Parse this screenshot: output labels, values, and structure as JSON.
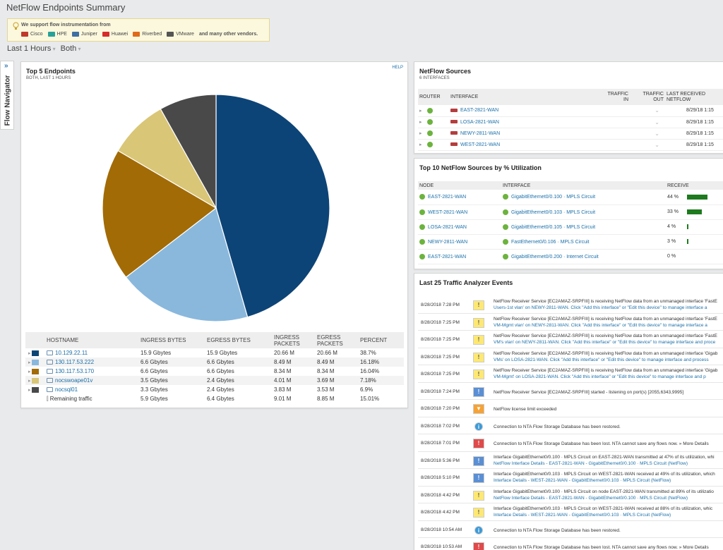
{
  "page": {
    "title": "NetFlow Endpoints Summary"
  },
  "banner": {
    "heading": "We support flow instrumentation from",
    "vendors": [
      {
        "name": "Cisco",
        "color": "#c0392b"
      },
      {
        "name": "HPE",
        "color": "#2aa198"
      },
      {
        "name": "Juniper",
        "color": "#3f6fa3"
      },
      {
        "name": "Huawei",
        "color": "#d62b2b"
      },
      {
        "name": "Riverbed",
        "color": "#e06a1b"
      },
      {
        "name": "VMware",
        "color": "#555555"
      }
    ],
    "more": "and many other vendors."
  },
  "filters": {
    "time": "Last 1 Hours",
    "direction": "Both"
  },
  "flow_navigator": {
    "label": "Flow Navigator"
  },
  "top5": {
    "title": "Top 5 Endpoints",
    "subtitle": "BOTH, LAST 1 HOURS",
    "help": "HELP",
    "columns": [
      "HOSTNAME",
      "INGRESS BYTES",
      "EGRESS BYTES",
      "INGRESS PACKETS",
      "EGRESS PACKETS",
      "PERCENT"
    ],
    "rows": [
      {
        "host": "10.129.22.11",
        "color": "#0d4477",
        "ib": "15.9 Gbytes",
        "eb": "15.9 Gbytes",
        "ip": "20.66 M",
        "ep": "20.66 M",
        "pct": "38.7%"
      },
      {
        "host": "130.117.53.222",
        "color": "#8ab8dd",
        "ib": "6.6 Gbytes",
        "eb": "6.6 Gbytes",
        "ip": "8.49 M",
        "ep": "8.49 M",
        "pct": "16.18%"
      },
      {
        "host": "130.117.53.170",
        "color": "#a26b06",
        "ib": "6.6 Gbytes",
        "eb": "6.6 Gbytes",
        "ip": "8.34 M",
        "ep": "8.34 M",
        "pct": "16.04%"
      },
      {
        "host": "nocswoape01v",
        "color": "#d9c677",
        "ib": "3.5 Gbytes",
        "eb": "2.4 Gbytes",
        "ip": "4.01 M",
        "ep": "3.69 M",
        "pct": "7.18%"
      },
      {
        "host": "nocsql01",
        "color": "#494949",
        "ib": "3.3 Gbytes",
        "eb": "2.4 Gbytes",
        "ip": "3.83 M",
        "ep": "3.53 M",
        "pct": "6.9%"
      }
    ],
    "remaining": {
      "label": "Remaining traffic",
      "ib": "5.9 Gbytes",
      "eb": "6.4 Gbytes",
      "ip": "9.01 M",
      "ep": "8.85 M",
      "pct": "15.01%"
    }
  },
  "chart_data": {
    "type": "pie",
    "categories": [
      "10.129.22.11",
      "130.117.53.222",
      "130.117.53.170",
      "nocswoape01v",
      "nocsql01"
    ],
    "values": [
      38.7,
      16.18,
      16.04,
      7.18,
      6.9
    ],
    "colors": [
      "#0d4477",
      "#8ab8dd",
      "#a26b06",
      "#d9c677",
      "#494949"
    ]
  },
  "sources": {
    "title": "NetFlow Sources",
    "subtitle": "6 INTERFACES",
    "columns": [
      "ROUTER",
      "INTERFACE",
      "TRAFFIC IN",
      "TRAFFIC OUT",
      "LAST RECEIVED NETFLOW"
    ],
    "rows": [
      {
        "router": "EAST-2821-WAN",
        "last": "8/29/18 1:15"
      },
      {
        "router": "LOSA-2821-WAN",
        "last": "8/29/18 1:15"
      },
      {
        "router": "NEWY-2811-WAN",
        "last": "8/29/18 1:15"
      },
      {
        "router": "WEST-2821-WAN",
        "last": "8/29/18 1:15"
      }
    ]
  },
  "top10": {
    "title": "Top 10 NetFlow Sources by % Utilization",
    "columns": [
      "NODE",
      "INTERFACE",
      "RECEIVE"
    ],
    "rows": [
      {
        "node": "EAST-2821-WAN",
        "iface": "GigabitEthernet0/0.100 · MPLS Circuit",
        "pct": "44 %",
        "util": 44
      },
      {
        "node": "WEST-2821-WAN",
        "iface": "GigabitEthernet0/0.103 · MPLS Circuit",
        "pct": "33 %",
        "util": 33
      },
      {
        "node": "LOSA-2821-WAN",
        "iface": "GigabitEthernet0/0.105 · MPLS Circuit",
        "pct": "4 %",
        "util": 4
      },
      {
        "node": "NEWY-2811-WAN",
        "iface": "FastEthernet0/0.106 · MPLS Circuit",
        "pct": "3 %",
        "util": 3
      },
      {
        "node": "EAST-2821-WAN",
        "iface": "GigabitEthernet0/0.200 · Internet Circuit",
        "pct": "0 %",
        "util": 0
      }
    ]
  },
  "events": {
    "title": "Last 25 Traffic Analyzer Events",
    "rows": [
      {
        "time": "8/28/2018 7:28 PM",
        "type": "warn",
        "glyph": "!",
        "l1": "NetFlow Receiver Service [EC2AMAZ-SRPFIII] is receiving NetFlow data from an unmanaged interface 'FastE",
        "l2": "Users-1st vlan' on NEWY-2811-WAN. Click \"Add this interface\" or \"Edit this device\" to manage interface a"
      },
      {
        "time": "8/28/2018 7:25 PM",
        "type": "warn",
        "glyph": "!",
        "l1": "NetFlow Receiver Service [EC2AMAZ-SRPFIII] is receiving NetFlow data from an unmanaged interface 'FastE",
        "l2": "VM-Mgmt vlan' on NEWY-2811-WAN. Click \"Add this interface\" or \"Edit this device\" to manage interface a"
      },
      {
        "time": "8/28/2018 7:25 PM",
        "type": "warn",
        "glyph": "!",
        "l1": "NetFlow Receiver Service [EC2AMAZ-SRPFIII] is receiving NetFlow data from an unmanaged interface 'FastE",
        "l2": "VM's vlan' on NEWY-2811-WAN. Click \"Add this interface\" or \"Edit this device\" to manage interface and proce"
      },
      {
        "time": "8/28/2018 7:25 PM",
        "type": "warn",
        "glyph": "!",
        "l1": "NetFlow Receiver Service [EC2AMAZ-SRPFIII] is receiving NetFlow data from an unmanaged interface 'Gigab",
        "l2": "VMs' on LOSA-2821-WAN. Click \"Add this interface\" or \"Edit this device\" to manage interface and process"
      },
      {
        "time": "8/28/2018 7:25 PM",
        "type": "warn",
        "glyph": "!",
        "l1": "NetFlow Receiver Service [EC2AMAZ-SRPFIII] is receiving NetFlow data from an unmanaged interface 'Gigab",
        "l2": "VM-Mgmt' on LOSA-2821-WAN. Click \"Add this interface\" or \"Edit this device\" to manage interface and p"
      },
      {
        "time": "8/28/2018 7:24 PM",
        "type": "start",
        "glyph": "!",
        "l1": "NetFlow Receiver Service [EC2AMAZ-SRPFIII] started - listening on port(s) [2055,6343,9995]",
        "l2": ""
      },
      {
        "time": "8/28/2018 7:20 PM",
        "type": "lic",
        "glyph": "▼",
        "l1": "NetFlow license limit exceeded",
        "l2": ""
      },
      {
        "time": "8/28/2018 7:02 PM",
        "type": "info",
        "glyph": "i",
        "l1": "Connection to NTA Flow Storage Database has been restored.",
        "l2": ""
      },
      {
        "time": "8/28/2018 7:01 PM",
        "type": "crit",
        "glyph": "!",
        "l1": "Connection to NTA Flow Storage Database has been lost. NTA cannot save any flows now. » More Details",
        "l2": ""
      },
      {
        "time": "8/28/2018 5:36 PM",
        "type": "start",
        "glyph": "!",
        "l1": "Interface GigabitEthernet0/0.100 · MPLS Circuit on EAST-2821-WAN transmitted at 47% of its utilization, whi",
        "l2": "NetFlow Interface Details - EAST-2821-WAN - GigabitEthernet0/0.100 · MPLS Circuit (NetFlow)"
      },
      {
        "time": "8/28/2018 5:10 PM",
        "type": "start",
        "glyph": "!",
        "l1": "Interface GigabitEthernet0/0.103 · MPLS Circuit on WEST-2821-WAN received at 49% of its utilization, which",
        "l2": "Interface Details - WEST-2821-WAN - GigabitEthernet0/0.103 · MPLS Circuit (NetFlow)"
      },
      {
        "time": "8/28/2018 4:42 PM",
        "type": "warn",
        "glyph": "!",
        "l1": "Interface GigabitEthernet0/0.100 · MPLS Circuit on node EAST-2821-WAN transmitted at 89% of its utilizatio",
        "l2": "NetFlow Interface Details - EAST-2821-WAN - GigabitEthernet0/0.100 · MPLS Circuit (NetFlow)"
      },
      {
        "time": "8/28/2018 4:42 PM",
        "type": "warn",
        "glyph": "!",
        "l1": "Interface GigabitEthernet0/0.103 · MPLS Circuit on WEST-2821-WAN received at 88% of its utilization, whic",
        "l2": "Interface Details - WEST-2821-WAN - GigabitEthernet0/0.103 · MPLS Circuit (NetFlow)"
      },
      {
        "time": "8/28/2018 10:54 AM",
        "type": "info",
        "glyph": "i",
        "l1": "Connection to NTA Flow Storage Database has been restored.",
        "l2": ""
      },
      {
        "time": "8/28/2018 10:53 AM",
        "type": "crit",
        "glyph": "!",
        "l1": "Connection to NTA Flow Storage Database has been lost. NTA cannot save any flows now. » More Details",
        "l2": ""
      }
    ]
  }
}
